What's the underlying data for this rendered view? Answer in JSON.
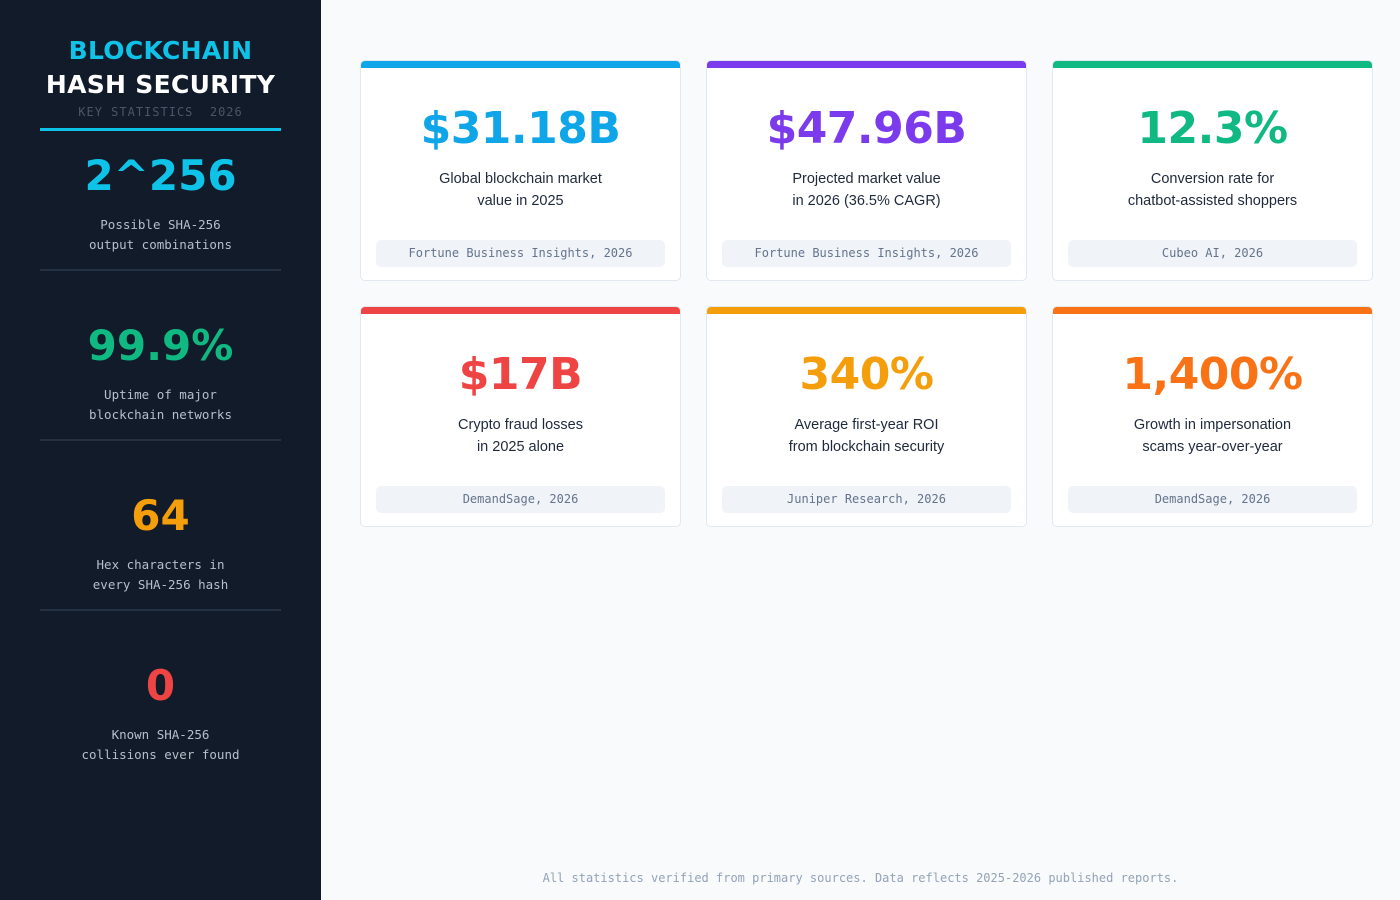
{
  "colors": {
    "sidebar_bg": "#111b29",
    "cyan": "#0fc3e8",
    "sky": "#0ea5e9",
    "purple": "#7c3aed",
    "green": "#10b981",
    "red": "#ef4444",
    "amber": "#f59e0b",
    "orange": "#f97316"
  },
  "sidebar": {
    "title_line1": "BLOCKCHAIN",
    "title_line2": "HASH SECURITY",
    "subtitle": "KEY STATISTICS  2026",
    "stats": [
      {
        "value": "2^256",
        "color": "#0fc3e8",
        "label_line1": "Possible SHA-256",
        "label_line2": "output combinations"
      },
      {
        "value": "99.9%",
        "color": "#10b981",
        "label_line1": "Uptime of major",
        "label_line2": "blockchain networks"
      },
      {
        "value": "64",
        "color": "#f59e0b",
        "label_line1": "Hex characters in",
        "label_line2": "every SHA-256 hash"
      },
      {
        "value": "0",
        "color": "#ef4444",
        "label_line1": "Known SHA-256",
        "label_line2": "collisions ever found"
      }
    ]
  },
  "cards": [
    {
      "value": "$31.18B",
      "color": "#0ea5e9",
      "desc_line1": "Global blockchain market",
      "desc_line2": "value in 2025",
      "source": "Fortune Business Insights, 2026"
    },
    {
      "value": "$47.96B",
      "color": "#7c3aed",
      "desc_line1": "Projected market value",
      "desc_line2": "in 2026 (36.5% CAGR)",
      "source": "Fortune Business Insights, 2026"
    },
    {
      "value": "12.3%",
      "color": "#10b981",
      "desc_line1": "Conversion rate for",
      "desc_line2": "chatbot-assisted shoppers",
      "source": "Cubeo AI, 2026"
    },
    {
      "value": "$17B",
      "color": "#ef4444",
      "desc_line1": "Crypto fraud losses",
      "desc_line2": "in 2025 alone",
      "source": "DemandSage, 2026"
    },
    {
      "value": "340%",
      "color": "#f59e0b",
      "desc_line1": "Average first-year ROI",
      "desc_line2": "from blockchain security",
      "source": "Juniper Research, 2026"
    },
    {
      "value": "1,400%",
      "color": "#f97316",
      "desc_line1": "Growth in impersonation",
      "desc_line2": "scams year-over-year",
      "source": "DemandSage, 2026"
    }
  ],
  "footer": "All statistics verified from primary sources. Data reflects 2025-2026 published reports."
}
